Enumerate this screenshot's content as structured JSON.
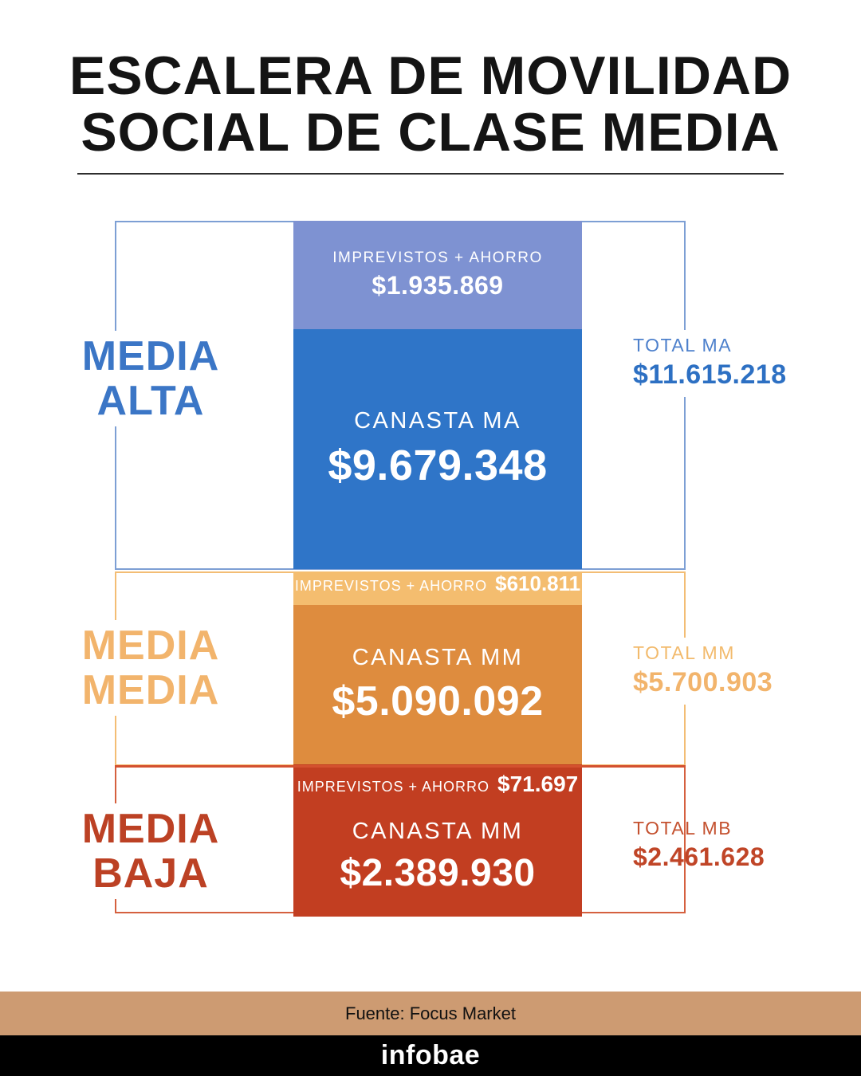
{
  "title": {
    "line1": "ESCALERA DE MOVILIDAD",
    "line2": "SOCIAL DE CLASE MEDIA"
  },
  "sections": [
    {
      "class_label_line1": "MEDIA",
      "class_label_line2": "ALTA",
      "imprevistos_label": "IMPREVISTOS + AHORRO",
      "imprevistos_value": "$1.935.869",
      "canasta_label": "CANASTA MA",
      "canasta_value": "$9.679.348",
      "total_label": "TOTAL MA",
      "total_value": "$11.615.218"
    },
    {
      "class_label_line1": "MEDIA",
      "class_label_line2": "MEDIA",
      "imprevistos_label": "IMPREVISTOS + AHORRO",
      "imprevistos_value": "$610.811",
      "canasta_label": "CANASTA MM",
      "canasta_value": "$5.090.092",
      "total_label": "TOTAL MM",
      "total_value": "$5.700.903"
    },
    {
      "class_label_line1": "MEDIA",
      "class_label_line2": "BAJA",
      "imprevistos_label": "IMPREVISTOS + AHORRO",
      "imprevistos_value": "$71.697",
      "canasta_label": "CANASTA MM",
      "canasta_value": "$2.389.930",
      "total_label": "TOTAL MB",
      "total_value": "$2.461.628"
    }
  ],
  "footer": {
    "source": "Fuente: Focus Market",
    "brand": "infobae"
  },
  "colors": {
    "media_alta": {
      "imprevistos_bg": "#7e92d2",
      "canasta_bg": "#2f75c8",
      "accent": "#3b76c6",
      "outline": "#7d9fd4"
    },
    "media_media": {
      "imprevistos_bg": "#f4bd6f",
      "canasta_bg": "#de8c3e",
      "accent": "#f2b46c",
      "outline": "#f3bd74"
    },
    "media_baja": {
      "canasta_bg": "#c23e21",
      "accent": "#bc4124",
      "outline": "#d5603f"
    },
    "footer_tan": "#cd9b72",
    "footer_black": "#000000"
  },
  "chart_data": {
    "type": "bar",
    "title": "ESCALERA DE MOVILIDAD SOCIAL DE CLASE MEDIA",
    "categories": [
      "MEDIA ALTA",
      "MEDIA MEDIA",
      "MEDIA BAJA"
    ],
    "series": [
      {
        "name": "CANASTA",
        "values": [
          9679348,
          5090092,
          2389930
        ]
      },
      {
        "name": "IMPREVISTOS + AHORRO",
        "values": [
          1935869,
          610811,
          71697
        ]
      }
    ],
    "totals": [
      11615218,
      5700903,
      2461628
    ],
    "unit": "$ (pesos)",
    "legend_position": "none",
    "grid": false,
    "source": "Focus Market"
  }
}
